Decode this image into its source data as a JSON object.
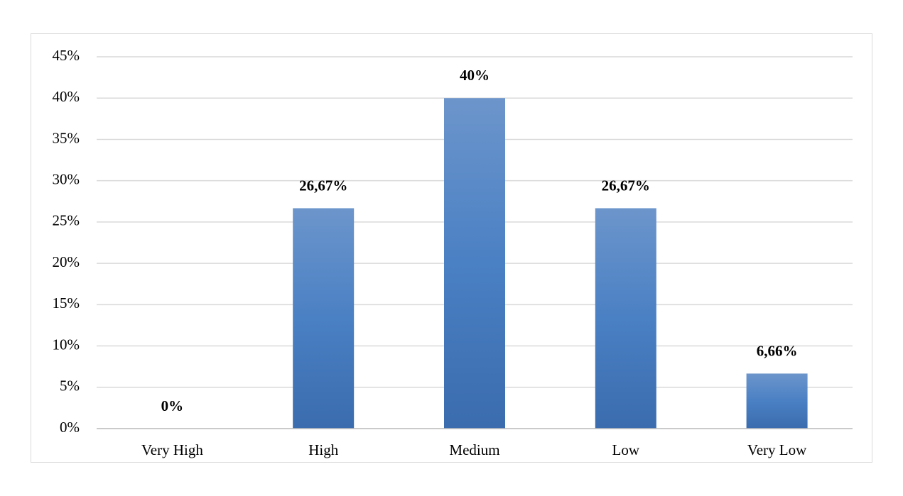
{
  "chart_data": {
    "type": "bar",
    "categories": [
      "Very High",
      "High",
      "Medium",
      "Low",
      "Very Low"
    ],
    "values": [
      0,
      26.67,
      40,
      26.67,
      6.66
    ],
    "value_labels": [
      "0%",
      "26,67%",
      "40%",
      "26,67%",
      "6,66%"
    ],
    "color": "#4a7ebf",
    "ylim": [
      0,
      45
    ],
    "yticks": [
      {
        "value": 0,
        "label": "0%"
      },
      {
        "value": 5,
        "label": "5%"
      },
      {
        "value": 10,
        "label": "10%"
      },
      {
        "value": 15,
        "label": "15%"
      },
      {
        "value": 20,
        "label": "20%"
      },
      {
        "value": 25,
        "label": "25%"
      },
      {
        "value": 30,
        "label": "30%"
      },
      {
        "value": 35,
        "label": "35%"
      },
      {
        "value": 40,
        "label": "40%"
      },
      {
        "value": 45,
        "label": "45%"
      }
    ],
    "grid": true
  }
}
